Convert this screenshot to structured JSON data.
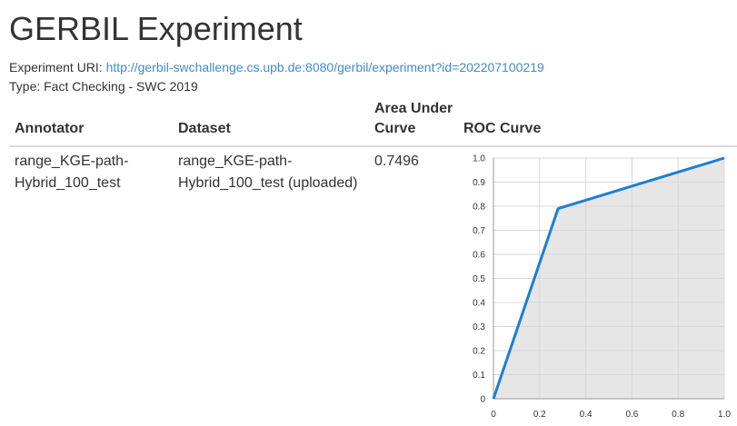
{
  "page": {
    "title": "GERBIL Experiment",
    "uri_label": "Experiment URI:",
    "uri": "http://gerbil-swchallenge.cs.upb.de:8080/gerbil/experiment?id=202207100219",
    "type_text": "Type: Fact Checking - SWC 2019"
  },
  "table": {
    "headers": {
      "annotator": "Annotator",
      "dataset": "Dataset",
      "auc": "Area Under Curve",
      "roc": "ROC Curve"
    },
    "rows": [
      {
        "annotator": "range_KGE-path-Hybrid_100_test",
        "dataset": "range_KGE-path-Hybrid_100_test (uploaded)",
        "auc": "0.7496"
      }
    ]
  },
  "chart_data": {
    "type": "area",
    "x": [
      0,
      0.28,
      1.0
    ],
    "y": [
      0,
      0.79,
      1.0
    ],
    "xlim": [
      0,
      1
    ],
    "ylim": [
      0,
      1
    ],
    "xticks": [
      0,
      0.2,
      0.4,
      0.6,
      0.8,
      1.0
    ],
    "xtick_labels": [
      "0",
      "0.2",
      "0.4",
      "0.6",
      "0.8",
      "1.0"
    ],
    "yticks": [
      0,
      0.1,
      0.2,
      0.3,
      0.4,
      0.5,
      0.6,
      0.7,
      0.8,
      0.9,
      1.0
    ],
    "ytick_labels": [
      "0",
      "0.1",
      "0.2",
      "0.3",
      "0.4",
      "0.5",
      "0.6",
      "0.7",
      "0.8",
      "0.9",
      "1.0"
    ],
    "grid": true,
    "line_color": "#1a7fd6",
    "fill_color": "#e6e6e6"
  }
}
